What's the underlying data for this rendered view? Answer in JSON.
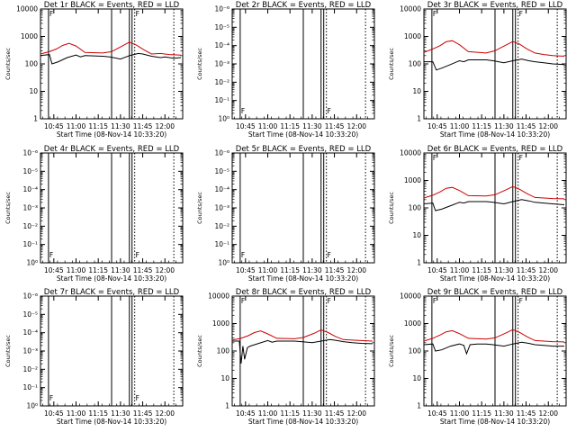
{
  "chart_data": [
    {
      "type": "line",
      "title": "Det 1r BLACK = Events, RED = LLD",
      "xlabel": "Start Time (08-Nov-14 10:33:20)",
      "ylabel": "Counts/sec",
      "yscale": "log",
      "ylim": [
        1,
        10000
      ],
      "yticks": [
        "1",
        "10",
        "100",
        "1000",
        "10000"
      ],
      "xlim": [
        10.6,
        12.2
      ],
      "xticks": [
        "10:45",
        "11:00",
        "11:15",
        "11:30",
        "11:45",
        "12:00"
      ],
      "markers": [
        "F",
        "F"
      ],
      "series": [
        {
          "name": "Events",
          "color": "#000000",
          "x": [
            10.6,
            10.7,
            10.73,
            10.8,
            10.9,
            11.0,
            11.05,
            11.1,
            11.3,
            11.38,
            11.5,
            11.6,
            11.65,
            11.7,
            11.75,
            11.85,
            11.95,
            12.0,
            12.1,
            12.18
          ],
          "y": [
            200,
            220,
            100,
            120,
            170,
            210,
            180,
            200,
            190,
            180,
            150,
            200,
            220,
            240,
            230,
            190,
            170,
            180,
            160,
            170
          ]
        },
        {
          "name": "LLD",
          "color": "#cc0000",
          "x": [
            10.6,
            10.7,
            10.78,
            10.85,
            10.92,
            11.0,
            11.1,
            11.3,
            11.4,
            11.52,
            11.6,
            11.68,
            11.76,
            11.85,
            11.95,
            12.05,
            12.18
          ],
          "y": [
            230,
            280,
            350,
            470,
            560,
            450,
            260,
            250,
            280,
            450,
            620,
            480,
            330,
            230,
            240,
            220,
            210
          ]
        }
      ]
    },
    {
      "type": "line",
      "title": "Det 2r BLACK = Events, RED = LLD",
      "xlabel": "Start Time (08-Nov-14 10:33:20)",
      "ylabel": "Counts/sec",
      "yscale": "log",
      "ylim": [
        1,
        1e-06
      ],
      "yticks": [
        "10⁰",
        "10⁻¹",
        "10⁻²",
        "10⁻³",
        "10⁻⁴",
        "10⁻⁵",
        "10⁻⁶"
      ],
      "xlim": [
        10.6,
        12.2
      ],
      "xticks": [
        "10:45",
        "11:00",
        "11:15",
        "11:30",
        "11:45",
        "12:00"
      ],
      "markers": [
        "F",
        "F"
      ],
      "series": []
    },
    {
      "type": "line",
      "title": "Det 3r BLACK = Events, RED = LLD",
      "xlabel": "Start Time (08-Nov-14 10:33:20)",
      "ylabel": "Counts/sec",
      "yscale": "log",
      "ylim": [
        1,
        10000
      ],
      "yticks": [
        "1",
        "10",
        "100",
        "1000",
        "10000"
      ],
      "xlim": [
        10.6,
        12.2
      ],
      "xticks": [
        "10:45",
        "11:00",
        "11:15",
        "11:30",
        "11:45",
        "12:00"
      ],
      "markers": [
        "F",
        "F"
      ],
      "series": [
        {
          "name": "Events",
          "color": "#000000",
          "x": [
            10.6,
            10.7,
            10.74,
            10.8,
            10.9,
            11.0,
            11.05,
            11.1,
            11.3,
            11.38,
            11.5,
            11.6,
            11.7,
            11.78,
            11.85,
            11.95,
            12.05,
            12.18
          ],
          "y": [
            120,
            120,
            60,
            70,
            95,
            130,
            120,
            140,
            140,
            130,
            110,
            130,
            150,
            130,
            120,
            110,
            100,
            95
          ]
        },
        {
          "name": "LLD",
          "color": "#cc0000",
          "x": [
            10.6,
            10.7,
            10.78,
            10.85,
            10.92,
            11.0,
            11.1,
            11.3,
            11.4,
            11.52,
            11.6,
            11.68,
            11.76,
            11.85,
            11.95,
            12.05,
            12.18
          ],
          "y": [
            260,
            350,
            460,
            640,
            700,
            500,
            280,
            250,
            300,
            480,
            650,
            520,
            350,
            250,
            220,
            200,
            190
          ]
        }
      ]
    },
    {
      "type": "line",
      "title": "Det 4r BLACK = Events, RED = LLD",
      "xlabel": "Start Time (08-Nov-14 10:33:20)",
      "ylabel": "Counts/sec",
      "yscale": "log",
      "ylim": [
        1,
        1e-06
      ],
      "yticks": [
        "10⁰",
        "10⁻¹",
        "10⁻²",
        "10⁻³",
        "10⁻⁴",
        "10⁻⁵",
        "10⁻⁶"
      ],
      "xlim": [
        10.6,
        12.2
      ],
      "xticks": [
        "10:45",
        "11:00",
        "11:15",
        "11:30",
        "11:45",
        "12:00"
      ],
      "markers": [
        "F",
        "F"
      ],
      "series": []
    },
    {
      "type": "line",
      "title": "Det 5r BLACK = Events, RED = LLD",
      "xlabel": "Start Time (08-Nov-14 10:33:20)",
      "ylabel": "Counts/sec",
      "yscale": "log",
      "ylim": [
        1,
        1e-06
      ],
      "yticks": [
        "10⁰",
        "10⁻¹",
        "10⁻²",
        "10⁻³",
        "10⁻⁴",
        "10⁻⁵",
        "10⁻⁶"
      ],
      "xlim": [
        10.6,
        12.2
      ],
      "xticks": [
        "10:45",
        "11:00",
        "11:15",
        "11:30",
        "11:45",
        "12:00"
      ],
      "markers": [
        "F",
        "F"
      ],
      "series": []
    },
    {
      "type": "line",
      "title": "Det 6r BLACK = Events, RED = LLD",
      "xlabel": "Start Time (08-Nov-14 10:33:20)",
      "ylabel": "Counts/sec",
      "yscale": "log",
      "ylim": [
        1,
        10000
      ],
      "yticks": [
        "1",
        "10",
        "100",
        "1000",
        "10000"
      ],
      "xlim": [
        10.6,
        12.2
      ],
      "xticks": [
        "10:45",
        "11:00",
        "11:15",
        "11:30",
        "11:45",
        "12:00"
      ],
      "markers": [
        "F",
        "F"
      ],
      "series": [
        {
          "name": "Events",
          "color": "#000000",
          "x": [
            10.6,
            10.7,
            10.73,
            10.8,
            10.9,
            11.0,
            11.05,
            11.1,
            11.3,
            11.38,
            11.5,
            11.6,
            11.7,
            11.78,
            11.85,
            11.95,
            12.05,
            12.18
          ],
          "y": [
            140,
            150,
            80,
            90,
            120,
            160,
            150,
            170,
            170,
            160,
            140,
            170,
            200,
            180,
            160,
            150,
            140,
            130
          ]
        },
        {
          "name": "LLD",
          "color": "#cc0000",
          "x": [
            10.6,
            10.7,
            10.78,
            10.85,
            10.92,
            11.0,
            11.1,
            11.3,
            11.4,
            11.52,
            11.6,
            11.68,
            11.76,
            11.85,
            11.95,
            12.05,
            12.18
          ],
          "y": [
            230,
            290,
            380,
            520,
            560,
            430,
            280,
            270,
            300,
            450,
            600,
            470,
            330,
            240,
            230,
            220,
            215
          ]
        }
      ]
    },
    {
      "type": "line",
      "title": "Det 7r BLACK = Events, RED = LLD",
      "xlabel": "Start Time (08-Nov-14 10:33:20)",
      "ylabel": "Counts/sec",
      "yscale": "log",
      "ylim": [
        1,
        1e-06
      ],
      "yticks": [
        "10⁰",
        "10⁻¹",
        "10⁻²",
        "10⁻³",
        "10⁻⁴",
        "10⁻⁵",
        "10⁻⁶"
      ],
      "xlim": [
        10.6,
        12.2
      ],
      "xticks": [
        "10:45",
        "11:00",
        "11:15",
        "11:30",
        "11:45",
        "12:00"
      ],
      "markers": [
        "F",
        "F"
      ],
      "series": []
    },
    {
      "type": "line",
      "title": "Det 8r BLACK = Events, RED = LLD",
      "xlabel": "Start Time (08-Nov-14 10:33:20)",
      "ylabel": "Counts/sec",
      "yscale": "log",
      "ylim": [
        1,
        10000
      ],
      "yticks": [
        "1",
        "10",
        "100",
        "1000",
        "10000"
      ],
      "xlim": [
        10.6,
        12.2
      ],
      "xticks": [
        "10:45",
        "11:00",
        "11:15",
        "11:30",
        "11:45",
        "12:00"
      ],
      "markers": [
        "F",
        "F"
      ],
      "series": [
        {
          "name": "Events",
          "color": "#000000",
          "x": [
            10.6,
            10.68,
            10.7,
            10.72,
            10.74,
            10.77,
            10.8,
            10.9,
            11.0,
            11.05,
            11.1,
            11.3,
            11.38,
            11.5,
            11.6,
            11.7,
            11.78,
            11.85,
            11.95,
            12.05,
            12.18
          ],
          "y": [
            230,
            230,
            35,
            150,
            50,
            130,
            150,
            190,
            240,
            210,
            230,
            230,
            220,
            200,
            230,
            260,
            240,
            220,
            200,
            190,
            185
          ]
        },
        {
          "name": "LLD",
          "color": "#cc0000",
          "x": [
            10.6,
            10.7,
            10.78,
            10.85,
            10.92,
            11.0,
            11.1,
            11.3,
            11.4,
            11.52,
            11.6,
            11.68,
            11.76,
            11.85,
            11.95,
            12.05,
            12.18
          ],
          "y": [
            250,
            290,
            360,
            470,
            540,
            420,
            290,
            280,
            310,
            440,
            590,
            470,
            340,
            260,
            250,
            240,
            230
          ]
        }
      ]
    },
    {
      "type": "line",
      "title": "Det 9r BLACK = Events, RED = LLD",
      "xlabel": "Start Time (08-Nov-14 10:33:20)",
      "ylabel": "Counts/sec",
      "yscale": "log",
      "ylim": [
        1,
        10000
      ],
      "yticks": [
        "1",
        "10",
        "100",
        "1000",
        "10000"
      ],
      "xlim": [
        10.6,
        12.2
      ],
      "xticks": [
        "10:45",
        "11:00",
        "11:15",
        "11:30",
        "11:45",
        "12:00"
      ],
      "markers": [
        "F",
        "F"
      ],
      "series": [
        {
          "name": "Events",
          "color": "#000000",
          "x": [
            10.6,
            10.7,
            10.73,
            10.8,
            10.9,
            11.0,
            11.05,
            11.08,
            11.12,
            11.2,
            11.3,
            11.38,
            11.5,
            11.6,
            11.7,
            11.78,
            11.85,
            11.95,
            12.05,
            12.18
          ],
          "y": [
            170,
            180,
            100,
            110,
            150,
            180,
            160,
            80,
            170,
            180,
            180,
            170,
            150,
            180,
            210,
            190,
            170,
            160,
            150,
            150
          ]
        },
        {
          "name": "LLD",
          "color": "#cc0000",
          "x": [
            10.6,
            10.7,
            10.78,
            10.85,
            10.92,
            11.0,
            11.1,
            11.3,
            11.4,
            11.52,
            11.6,
            11.68,
            11.76,
            11.85,
            11.95,
            12.05,
            12.18
          ],
          "y": [
            230,
            290,
            380,
            500,
            550,
            430,
            290,
            270,
            300,
            450,
            600,
            470,
            330,
            240,
            230,
            220,
            215
          ]
        }
      ]
    }
  ]
}
